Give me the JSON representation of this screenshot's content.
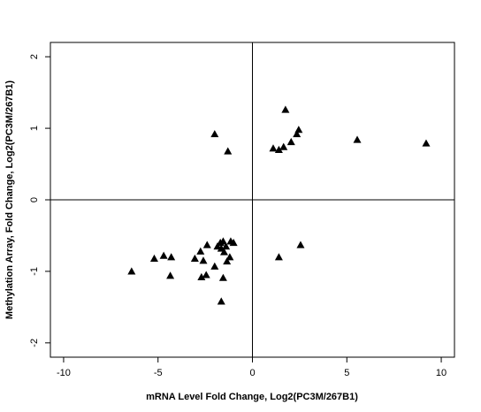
{
  "chart_data": {
    "type": "scatter",
    "title": "",
    "xlabel": "mRNA Level Fold Change, Log2(PC3M/267B1)",
    "ylabel": "Methylation Array, Fold Change, Log2(PC3M/267B1)",
    "xlim": [
      -10.7,
      10.7
    ],
    "ylim": [
      -2.2,
      2.2
    ],
    "xticks": [
      -10,
      -5,
      0,
      5,
      10
    ],
    "yticks": [
      -2,
      -1,
      0,
      1,
      2
    ],
    "xtick_labels": [
      "-10",
      "-5",
      "0",
      "5",
      "10"
    ],
    "ytick_labels": [
      "-2",
      "-1",
      "0",
      "1",
      "2"
    ],
    "reference_lines": {
      "x": 0,
      "y": 0
    },
    "marker": "filled-triangle",
    "grid": false,
    "series": [
      {
        "points": [
          [
            -2.0,
            0.92
          ],
          [
            -1.3,
            0.68
          ],
          [
            1.1,
            0.72
          ],
          [
            1.4,
            0.7
          ],
          [
            1.65,
            0.74
          ],
          [
            2.05,
            0.81
          ],
          [
            2.35,
            0.92
          ],
          [
            2.45,
            0.98
          ],
          [
            1.75,
            1.26
          ],
          [
            5.55,
            0.84
          ],
          [
            9.2,
            0.79
          ],
          [
            -6.4,
            -1.0
          ],
          [
            -5.2,
            -0.82
          ],
          [
            -4.7,
            -0.78
          ],
          [
            -4.3,
            -0.8
          ],
          [
            -4.35,
            -1.06
          ],
          [
            -3.05,
            -0.82
          ],
          [
            -2.75,
            -0.72
          ],
          [
            -2.6,
            -0.85
          ],
          [
            -2.7,
            -1.08
          ],
          [
            -2.45,
            -1.05
          ],
          [
            -2.4,
            -0.63
          ],
          [
            -2.0,
            -0.93
          ],
          [
            -1.85,
            -0.65
          ],
          [
            -1.7,
            -0.6
          ],
          [
            -1.65,
            -0.68
          ],
          [
            -1.55,
            -0.58
          ],
          [
            -1.5,
            -0.73
          ],
          [
            -1.4,
            -0.65
          ],
          [
            -1.35,
            -0.86
          ],
          [
            -1.2,
            -0.8
          ],
          [
            -1.15,
            -0.58
          ],
          [
            -1.0,
            -0.6
          ],
          [
            -1.55,
            -1.09
          ],
          [
            -1.65,
            -1.42
          ],
          [
            1.4,
            -0.8
          ],
          [
            2.55,
            -0.63
          ]
        ]
      }
    ]
  }
}
